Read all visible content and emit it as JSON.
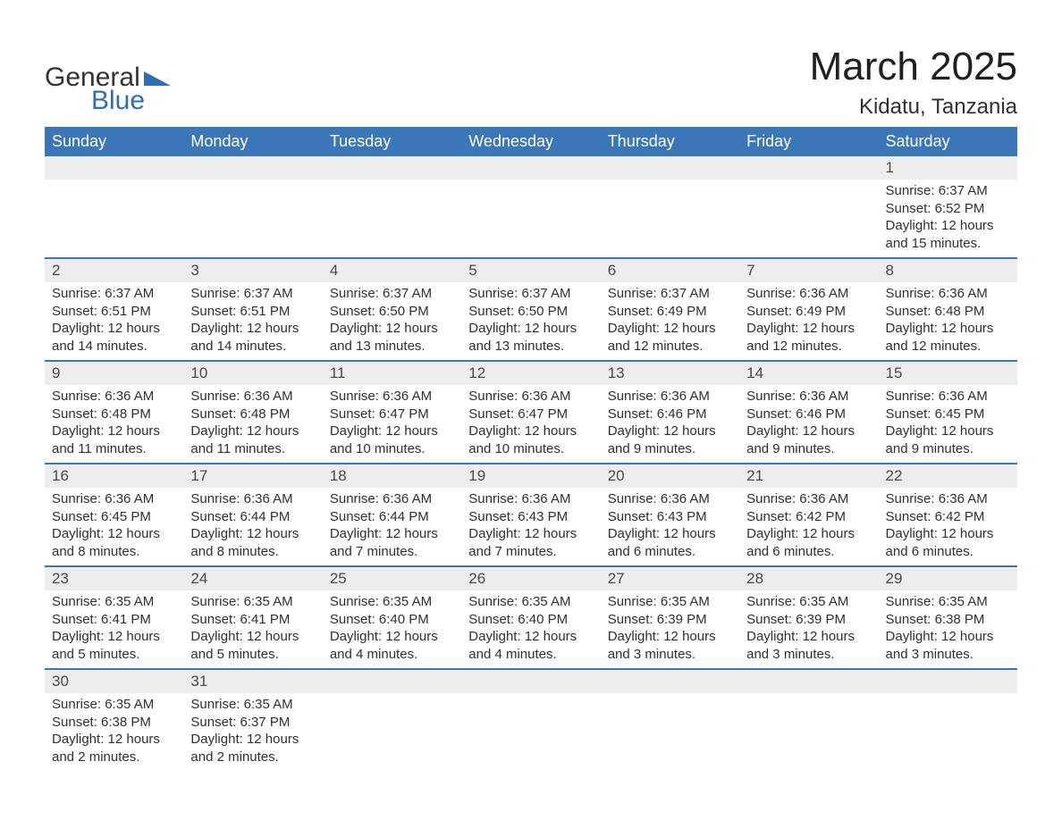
{
  "logo": {
    "text1": "General",
    "text2": "Blue",
    "triangle_color": "#2f6eb2"
  },
  "title": "March 2025",
  "location": "Kidatu, Tanzania",
  "colors": {
    "header_bg": "#3a76b8",
    "header_text": "#ffffff",
    "daynum_bg": "#ededed",
    "row_divider": "#3a76b8",
    "body_text": "#303030"
  },
  "day_headers": [
    "Sunday",
    "Monday",
    "Tuesday",
    "Wednesday",
    "Thursday",
    "Friday",
    "Saturday"
  ],
  "weeks": [
    [
      {
        "n": "",
        "sr": "",
        "ss": "",
        "dl": ""
      },
      {
        "n": "",
        "sr": "",
        "ss": "",
        "dl": ""
      },
      {
        "n": "",
        "sr": "",
        "ss": "",
        "dl": ""
      },
      {
        "n": "",
        "sr": "",
        "ss": "",
        "dl": ""
      },
      {
        "n": "",
        "sr": "",
        "ss": "",
        "dl": ""
      },
      {
        "n": "",
        "sr": "",
        "ss": "",
        "dl": ""
      },
      {
        "n": "1",
        "sr": "Sunrise: 6:37 AM",
        "ss": "Sunset: 6:52 PM",
        "dl": "Daylight: 12 hours and 15 minutes."
      }
    ],
    [
      {
        "n": "2",
        "sr": "Sunrise: 6:37 AM",
        "ss": "Sunset: 6:51 PM",
        "dl": "Daylight: 12 hours and 14 minutes."
      },
      {
        "n": "3",
        "sr": "Sunrise: 6:37 AM",
        "ss": "Sunset: 6:51 PM",
        "dl": "Daylight: 12 hours and 14 minutes."
      },
      {
        "n": "4",
        "sr": "Sunrise: 6:37 AM",
        "ss": "Sunset: 6:50 PM",
        "dl": "Daylight: 12 hours and 13 minutes."
      },
      {
        "n": "5",
        "sr": "Sunrise: 6:37 AM",
        "ss": "Sunset: 6:50 PM",
        "dl": "Daylight: 12 hours and 13 minutes."
      },
      {
        "n": "6",
        "sr": "Sunrise: 6:37 AM",
        "ss": "Sunset: 6:49 PM",
        "dl": "Daylight: 12 hours and 12 minutes."
      },
      {
        "n": "7",
        "sr": "Sunrise: 6:36 AM",
        "ss": "Sunset: 6:49 PM",
        "dl": "Daylight: 12 hours and 12 minutes."
      },
      {
        "n": "8",
        "sr": "Sunrise: 6:36 AM",
        "ss": "Sunset: 6:48 PM",
        "dl": "Daylight: 12 hours and 12 minutes."
      }
    ],
    [
      {
        "n": "9",
        "sr": "Sunrise: 6:36 AM",
        "ss": "Sunset: 6:48 PM",
        "dl": "Daylight: 12 hours and 11 minutes."
      },
      {
        "n": "10",
        "sr": "Sunrise: 6:36 AM",
        "ss": "Sunset: 6:48 PM",
        "dl": "Daylight: 12 hours and 11 minutes."
      },
      {
        "n": "11",
        "sr": "Sunrise: 6:36 AM",
        "ss": "Sunset: 6:47 PM",
        "dl": "Daylight: 12 hours and 10 minutes."
      },
      {
        "n": "12",
        "sr": "Sunrise: 6:36 AM",
        "ss": "Sunset: 6:47 PM",
        "dl": "Daylight: 12 hours and 10 minutes."
      },
      {
        "n": "13",
        "sr": "Sunrise: 6:36 AM",
        "ss": "Sunset: 6:46 PM",
        "dl": "Daylight: 12 hours and 9 minutes."
      },
      {
        "n": "14",
        "sr": "Sunrise: 6:36 AM",
        "ss": "Sunset: 6:46 PM",
        "dl": "Daylight: 12 hours and 9 minutes."
      },
      {
        "n": "15",
        "sr": "Sunrise: 6:36 AM",
        "ss": "Sunset: 6:45 PM",
        "dl": "Daylight: 12 hours and 9 minutes."
      }
    ],
    [
      {
        "n": "16",
        "sr": "Sunrise: 6:36 AM",
        "ss": "Sunset: 6:45 PM",
        "dl": "Daylight: 12 hours and 8 minutes."
      },
      {
        "n": "17",
        "sr": "Sunrise: 6:36 AM",
        "ss": "Sunset: 6:44 PM",
        "dl": "Daylight: 12 hours and 8 minutes."
      },
      {
        "n": "18",
        "sr": "Sunrise: 6:36 AM",
        "ss": "Sunset: 6:44 PM",
        "dl": "Daylight: 12 hours and 7 minutes."
      },
      {
        "n": "19",
        "sr": "Sunrise: 6:36 AM",
        "ss": "Sunset: 6:43 PM",
        "dl": "Daylight: 12 hours and 7 minutes."
      },
      {
        "n": "20",
        "sr": "Sunrise: 6:36 AM",
        "ss": "Sunset: 6:43 PM",
        "dl": "Daylight: 12 hours and 6 minutes."
      },
      {
        "n": "21",
        "sr": "Sunrise: 6:36 AM",
        "ss": "Sunset: 6:42 PM",
        "dl": "Daylight: 12 hours and 6 minutes."
      },
      {
        "n": "22",
        "sr": "Sunrise: 6:36 AM",
        "ss": "Sunset: 6:42 PM",
        "dl": "Daylight: 12 hours and 6 minutes."
      }
    ],
    [
      {
        "n": "23",
        "sr": "Sunrise: 6:35 AM",
        "ss": "Sunset: 6:41 PM",
        "dl": "Daylight: 12 hours and 5 minutes."
      },
      {
        "n": "24",
        "sr": "Sunrise: 6:35 AM",
        "ss": "Sunset: 6:41 PM",
        "dl": "Daylight: 12 hours and 5 minutes."
      },
      {
        "n": "25",
        "sr": "Sunrise: 6:35 AM",
        "ss": "Sunset: 6:40 PM",
        "dl": "Daylight: 12 hours and 4 minutes."
      },
      {
        "n": "26",
        "sr": "Sunrise: 6:35 AM",
        "ss": "Sunset: 6:40 PM",
        "dl": "Daylight: 12 hours and 4 minutes."
      },
      {
        "n": "27",
        "sr": "Sunrise: 6:35 AM",
        "ss": "Sunset: 6:39 PM",
        "dl": "Daylight: 12 hours and 3 minutes."
      },
      {
        "n": "28",
        "sr": "Sunrise: 6:35 AM",
        "ss": "Sunset: 6:39 PM",
        "dl": "Daylight: 12 hours and 3 minutes."
      },
      {
        "n": "29",
        "sr": "Sunrise: 6:35 AM",
        "ss": "Sunset: 6:38 PM",
        "dl": "Daylight: 12 hours and 3 minutes."
      }
    ],
    [
      {
        "n": "30",
        "sr": "Sunrise: 6:35 AM",
        "ss": "Sunset: 6:38 PM",
        "dl": "Daylight: 12 hours and 2 minutes."
      },
      {
        "n": "31",
        "sr": "Sunrise: 6:35 AM",
        "ss": "Sunset: 6:37 PM",
        "dl": "Daylight: 12 hours and 2 minutes."
      },
      {
        "n": "",
        "sr": "",
        "ss": "",
        "dl": ""
      },
      {
        "n": "",
        "sr": "",
        "ss": "",
        "dl": ""
      },
      {
        "n": "",
        "sr": "",
        "ss": "",
        "dl": ""
      },
      {
        "n": "",
        "sr": "",
        "ss": "",
        "dl": ""
      },
      {
        "n": "",
        "sr": "",
        "ss": "",
        "dl": ""
      }
    ]
  ]
}
